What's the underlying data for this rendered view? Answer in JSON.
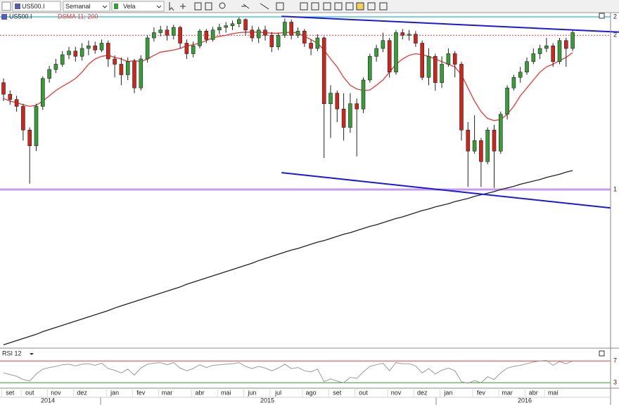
{
  "toolbar": {
    "period": "Semanal",
    "chart_style": "Vela"
  },
  "chart_data": {
    "type": "candlestick",
    "title": "US500.I",
    "indicator_label": "DSMA 11; 200",
    "categories": [
      null,
      "set",
      null,
      null,
      "out",
      null,
      null,
      null,
      "nov",
      null,
      null,
      null,
      "dez",
      null,
      null,
      null,
      null,
      "jan",
      null,
      null,
      null,
      "fev",
      null,
      null,
      null,
      "mar",
      null,
      null,
      null,
      null,
      "abr",
      null,
      null,
      null,
      "mai",
      null,
      null,
      null,
      "jun",
      null,
      null,
      null,
      "jul",
      null,
      null,
      null,
      null,
      "ago",
      null,
      null,
      null,
      "set",
      null,
      null,
      null,
      "out",
      null,
      null,
      null,
      null,
      "nov",
      null,
      null,
      null,
      "dez",
      null,
      null,
      null,
      "jan",
      null,
      null,
      null,
      null,
      "fev",
      null,
      null,
      null,
      "mar",
      null,
      null,
      null,
      "abr",
      null,
      null,
      "mai",
      null,
      null,
      null
    ],
    "years": [
      "2014",
      "2015",
      "2016"
    ],
    "open": [
      2010,
      1988,
      1978,
      1965,
      1920,
      1890,
      1965,
      2018,
      2035,
      2045,
      2063,
      2070,
      2060,
      2075,
      2080,
      2072,
      2085,
      2055,
      2045,
      2025,
      2050,
      2000,
      2055,
      2095,
      2105,
      2110,
      2100,
      2115,
      2085,
      2065,
      2080,
      2108,
      2092,
      2110,
      2115,
      2118,
      2122,
      2130,
      2110,
      2095,
      2110,
      2100,
      2078,
      2100,
      2125,
      2100,
      2108,
      2085,
      2075,
      2095,
      1970,
      1990,
      1960,
      1925,
      1970,
      1960,
      2015,
      2060,
      2075,
      2090,
      2030,
      2105,
      2100,
      2102,
      2085,
      2020,
      2060,
      2010,
      2045,
      2065,
      2045,
      1920,
      1880,
      1900,
      1860,
      1920,
      1880,
      1950,
      2000,
      2020,
      2030,
      2050,
      2065,
      2075,
      2080,
      2050,
      2090,
      2075
    ],
    "high": [
      2018,
      1995,
      1985,
      1970,
      1925,
      1970,
      2022,
      2042,
      2055,
      2070,
      2078,
      2078,
      2085,
      2090,
      2088,
      2092,
      2090,
      2062,
      2058,
      2058,
      2055,
      2062,
      2100,
      2115,
      2118,
      2118,
      2120,
      2118,
      2092,
      2088,
      2112,
      2112,
      2116,
      2122,
      2125,
      2128,
      2134,
      2132,
      2118,
      2116,
      2118,
      2106,
      2105,
      2132,
      2130,
      2115,
      2112,
      2092,
      2102,
      2098,
      2005,
      1995,
      1990,
      1990,
      1980,
      2020,
      2065,
      2082,
      2105,
      2095,
      2110,
      2112,
      2110,
      2108,
      2090,
      2075,
      2065,
      2060,
      2075,
      2070,
      2050,
      1935,
      1948,
      1905,
      1925,
      1930,
      1955,
      2005,
      2025,
      2040,
      2058,
      2075,
      2082,
      2095,
      2085,
      2095,
      2095,
      2110
    ],
    "low": [
      1975,
      1968,
      1955,
      1900,
      1818,
      1880,
      1958,
      2010,
      2028,
      2040,
      2055,
      2050,
      2052,
      2062,
      2065,
      2068,
      2040,
      2020,
      2005,
      2015,
      1990,
      1995,
      2048,
      2088,
      2098,
      2090,
      2092,
      2075,
      2055,
      2058,
      2075,
      2085,
      2088,
      2102,
      2105,
      2110,
      2115,
      2100,
      2088,
      2085,
      2090,
      2068,
      2072,
      2095,
      2092,
      2095,
      2078,
      2062,
      2070,
      1867,
      1905,
      1935,
      1900,
      1915,
      1870,
      1952,
      2010,
      2050,
      2068,
      2020,
      2025,
      2092,
      2090,
      2078,
      2015,
      2005,
      1995,
      2000,
      2040,
      2020,
      1900,
      1812,
      1875,
      1812,
      1855,
      1810,
      1875,
      1940,
      1995,
      2010,
      2025,
      2045,
      2055,
      2068,
      2040,
      2045,
      2040,
      2070
    ],
    "close": [
      1988,
      1978,
      1965,
      1920,
      1890,
      1965,
      2018,
      2035,
      2045,
      2063,
      2070,
      2060,
      2075,
      2080,
      2072,
      2085,
      2055,
      2045,
      2025,
      2050,
      2000,
      2055,
      2095,
      2105,
      2110,
      2100,
      2115,
      2085,
      2065,
      2080,
      2108,
      2092,
      2110,
      2115,
      2118,
      2122,
      2130,
      2110,
      2095,
      2110,
      2100,
      2078,
      2100,
      2125,
      2100,
      2108,
      2085,
      2075,
      2095,
      1970,
      1990,
      1960,
      1925,
      1970,
      1960,
      2015,
      2060,
      2075,
      2090,
      2030,
      2105,
      2100,
      2102,
      2085,
      2020,
      2060,
      2010,
      2045,
      2065,
      2045,
      1920,
      1880,
      1900,
      1860,
      1920,
      1880,
      1950,
      2000,
      2020,
      2030,
      2050,
      2065,
      2075,
      2080,
      2050,
      2090,
      2075,
      2105
    ],
    "up_color": "#3a9b3a",
    "down_color": "#c8281e",
    "lines": [
      {
        "color": "#e53935",
        "values": [
          1980,
          1975,
          1972,
          1968,
          1965,
          1967,
          1975,
          1985,
          1995,
          2003,
          2010,
          2018,
          2030,
          2045,
          2055,
          2060,
          2062,
          2058,
          2055,
          2050,
          2052,
          2050,
          2055,
          2062,
          2068,
          2070,
          2072,
          2075,
          2080,
          2082,
          2085,
          2090,
          2095,
          2098,
          2100,
          2103,
          2105,
          2106,
          2106,
          2106,
          2105,
          2104,
          2104,
          2105,
          2106,
          2104,
          2098,
          2092,
          2085,
          2072,
          2055,
          2040,
          2020,
          2005,
          1998,
          1995,
          1996,
          2005,
          2015,
          2030,
          2045,
          2055,
          2062,
          2065,
          2063,
          2060,
          2055,
          2050,
          2045,
          2040,
          2025,
          2000,
          1975,
          1955,
          1942,
          1938,
          1940,
          1950,
          1965,
          1985,
          2000,
          2015,
          2030,
          2040,
          2045,
          2052,
          2058,
          2067
        ]
      },
      {
        "color": "#222222",
        "values": [
          1512,
          1516,
          1520,
          1524,
          1528,
          1532,
          1537,
          1541,
          1545,
          1549,
          1553,
          1557,
          1561,
          1565,
          1569,
          1573,
          1577,
          1582,
          1586,
          1590,
          1594,
          1598,
          1602,
          1606,
          1610,
          1614,
          1618,
          1622,
          1627,
          1631,
          1635,
          1639,
          1643,
          1647,
          1651,
          1655,
          1659,
          1663,
          1667,
          1672,
          1676,
          1680,
          1684,
          1688,
          1692,
          1695,
          1699,
          1703,
          1707,
          1710,
          1714,
          1718,
          1722,
          1725,
          1729,
          1733,
          1737,
          1740,
          1744,
          1748,
          1752,
          1755,
          1759,
          1763,
          1767,
          1770,
          1774,
          1777,
          1780,
          1784,
          1787,
          1790,
          1794,
          1797,
          1800,
          1803,
          1807,
          1810,
          1813,
          1817,
          1820,
          1823,
          1826,
          1830,
          1833,
          1836,
          1840,
          1843
        ]
      }
    ],
    "ylim": [
      1507,
      2143
    ],
    "hlines": [
      {
        "value": 2135,
        "label": "2",
        "color": "#29b6d6",
        "width": 1.2,
        "dash": false
      },
      {
        "value": 2100,
        "label": "2",
        "color": "#e53935",
        "width": 1,
        "dash": true
      },
      {
        "value": 1807,
        "label": "1",
        "color": "#c59cf0",
        "width": 3,
        "dash": false
      }
    ],
    "trendlines": [
      {
        "color": "#1a1adc",
        "x": [
          42.5,
          94.1
        ],
        "y": [
          2136,
          2106
        ]
      },
      {
        "color": "#1a1adc",
        "x": [
          42.5,
          92.8
        ],
        "y": [
          1839,
          1772
        ]
      }
    ],
    "rsi": {
      "title": "RSI 12",
      "color": "#9a9a9a",
      "ylim": [
        20,
        82
      ],
      "levels": [
        {
          "value": 70,
          "label": "7",
          "color": "#e53935"
        },
        {
          "value": 30,
          "label": "3",
          "color": "#2e9e2e"
        }
      ],
      "values": [
        48,
        45,
        42,
        36,
        33,
        46,
        55,
        58,
        60,
        63,
        64,
        61,
        64,
        65,
        62,
        66,
        56,
        53,
        48,
        55,
        44,
        57,
        64,
        66,
        67,
        63,
        67,
        57,
        52,
        56,
        63,
        58,
        62,
        63,
        64,
        65,
        67,
        60,
        56,
        60,
        57,
        52,
        57,
        64,
        56,
        58,
        52,
        50,
        55,
        32,
        37,
        33,
        30,
        40,
        38,
        50,
        60,
        63,
        66,
        52,
        67,
        65,
        65,
        61,
        48,
        56,
        46,
        53,
        57,
        52,
        32,
        29,
        34,
        30,
        41,
        36,
        48,
        57,
        60,
        62,
        65,
        68,
        70,
        71,
        62,
        69,
        65,
        70
      ]
    }
  }
}
